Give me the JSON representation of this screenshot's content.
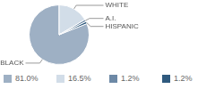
{
  "chart_data": {
    "type": "pie",
    "categories": [
      "BLACK",
      "WHITE",
      "A.I.",
      "HISPANIC"
    ],
    "values": [
      81.0,
      16.5,
      1.2,
      1.2
    ],
    "value_labels": [
      "81.0%",
      "16.5%",
      "1.2%",
      "1.2%"
    ],
    "colors": [
      "#9eb0c4",
      "#d2dde8",
      "#6d89a6",
      "#2f5a7e"
    ],
    "legend": "bottom"
  }
}
